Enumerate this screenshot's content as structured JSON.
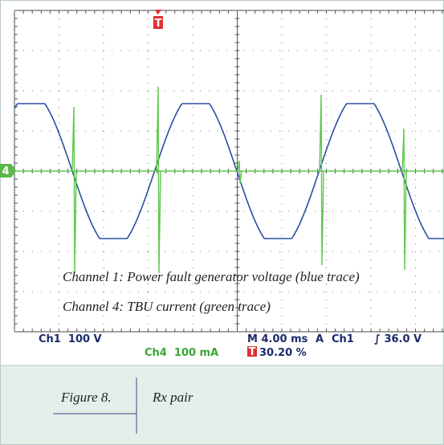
{
  "scope": {
    "channel_marker": "4",
    "trigger_marker": "T",
    "annotations": [
      "Channel 1: Power fault generator voltage (blue trace)",
      "Channel 4: TBU current (green trace)"
    ],
    "status": {
      "ch1_scale": "Ch1  100 V",
      "ch4_scale": "Ch4  100 mA",
      "timebase": "M 4.00 ms",
      "trigger_mode": "A",
      "trigger_source": "Ch1",
      "trigger_level": "∫ 36.0 V",
      "trigger_position_marker": "T",
      "trigger_position": "30.20 %"
    }
  },
  "caption": {
    "label": "Figure 8.",
    "title": "Rx pair"
  }
}
